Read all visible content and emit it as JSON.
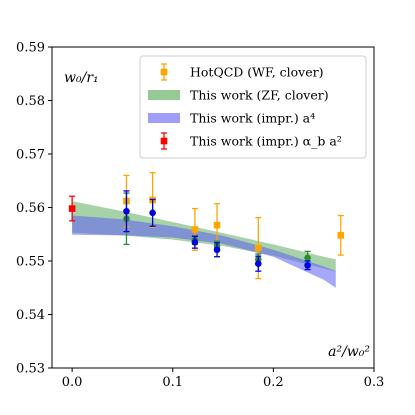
{
  "chart_data": {
    "type": "scatter",
    "title": "",
    "xlabel": "",
    "ylabel": "",
    "annotations": {
      "top_left": "w₀/r₁",
      "bottom_right": "a²/w₀²"
    },
    "xlim": [
      -0.02,
      0.3
    ],
    "ylim": [
      0.53,
      0.59
    ],
    "x_ticks": [
      0.0,
      0.1,
      0.2,
      0.3
    ],
    "x_tick_labels": [
      "0.0",
      "0.1",
      "0.2",
      "0.3"
    ],
    "y_ticks": [
      0.53,
      0.54,
      0.55,
      0.56,
      0.57,
      0.58,
      0.59
    ],
    "y_tick_labels": [
      "0.53",
      "0.54",
      "0.55",
      "0.56",
      "0.57",
      "0.58",
      "0.59"
    ],
    "grid": false,
    "legend_position": "top-right",
    "legend": [
      {
        "label": "HotQCD (WF, clover)",
        "kind": "marker",
        "color": "#FFA500",
        "marker": "square"
      },
      {
        "label": "This work (ZF, clover)",
        "kind": "band",
        "color": "#4fa64f"
      },
      {
        "label": "This work (impr.) a⁴",
        "kind": "band",
        "color": "#5f5ff5"
      },
      {
        "label": "This work (impr.) α_b a²",
        "kind": "marker",
        "color": "#ff0000",
        "marker": "square"
      }
    ],
    "bands": [
      {
        "name": "This work (ZF, clover)",
        "color": "#4fa64f",
        "opacity": 0.5,
        "x": [
          0,
          0.05,
          0.1,
          0.15,
          0.2,
          0.25,
          0.262
        ],
        "lower": [
          0.5553,
          0.5548,
          0.554,
          0.5528,
          0.551,
          0.5486,
          0.548
        ],
        "upper": [
          0.5612,
          0.5593,
          0.5573,
          0.5552,
          0.5531,
          0.5508,
          0.5503
        ]
      },
      {
        "name": "This work (impr.) a⁴",
        "color": "#5f5ff5",
        "opacity": 0.55,
        "x": [
          0,
          0.05,
          0.1,
          0.15,
          0.2,
          0.25,
          0.262
        ],
        "lower": [
          0.5549,
          0.5548,
          0.5544,
          0.5532,
          0.5508,
          0.5465,
          0.545
        ],
        "upper": [
          0.5585,
          0.5578,
          0.5565,
          0.5547,
          0.5521,
          0.549,
          0.5481
        ]
      }
    ],
    "series": [
      {
        "name": "HotQCD (WF, clover)",
        "color": "#FFA500",
        "marker": "square",
        "points": [
          {
            "x": 0.054,
            "y": 0.5612,
            "err": 0.0048
          },
          {
            "x": 0.08,
            "y": 0.5614,
            "err": 0.0051
          },
          {
            "x": 0.122,
            "y": 0.5559,
            "err": 0.0039
          },
          {
            "x": 0.144,
            "y": 0.5567,
            "err": 0.004
          },
          {
            "x": 0.185,
            "y": 0.5524,
            "err": 0.0057
          },
          {
            "x": 0.267,
            "y": 0.5548,
            "err": 0.0037
          }
        ]
      },
      {
        "name": "",
        "color": "#2e8b2e",
        "marker": "circle",
        "points": [
          {
            "x": 0.054,
            "y": 0.5579,
            "err": 0.0048
          },
          {
            "x": 0.122,
            "y": 0.5539,
            "err": 0.0008
          },
          {
            "x": 0.144,
            "y": 0.5528,
            "err": 0.0009
          },
          {
            "x": 0.185,
            "y": 0.5503,
            "err": 0.001
          },
          {
            "x": 0.234,
            "y": 0.5506,
            "err": 0.0012
          }
        ]
      },
      {
        "name": "",
        "color": "#0000e0",
        "marker": "circle",
        "points": [
          {
            "x": 0.054,
            "y": 0.5593,
            "err": 0.0038
          },
          {
            "x": 0.08,
            "y": 0.559,
            "err": 0.0025
          },
          {
            "x": 0.122,
            "y": 0.5535,
            "err": 0.0011
          },
          {
            "x": 0.144,
            "y": 0.5521,
            "err": 0.0013
          },
          {
            "x": 0.185,
            "y": 0.5495,
            "err": 0.0014
          },
          {
            "x": 0.234,
            "y": 0.5492,
            "err": 0.0008
          }
        ]
      },
      {
        "name": "This work (impr.) α_b a²",
        "color": "#ff0000",
        "marker": "square",
        "points": [
          {
            "x": 0.0,
            "y": 0.5598,
            "err": 0.0023
          }
        ]
      }
    ]
  }
}
